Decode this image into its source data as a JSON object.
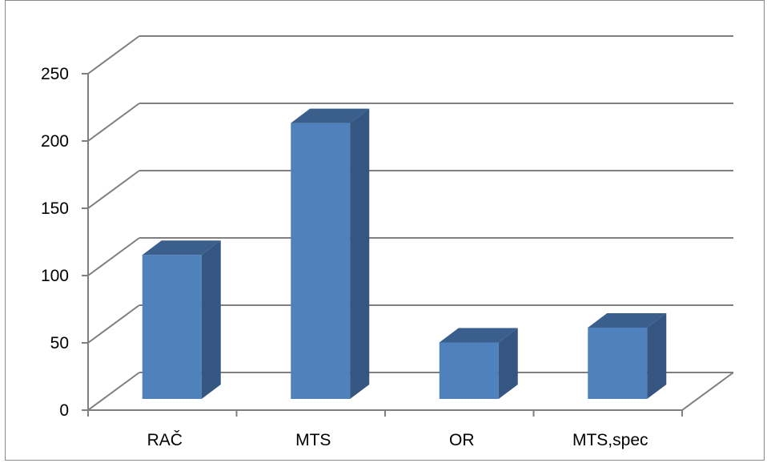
{
  "chart_data": {
    "type": "bar",
    "style": "3d-column",
    "categories": [
      "RAČ",
      "MTS",
      "OR",
      "MTS,spec"
    ],
    "series": [
      {
        "values": [
          107,
          205,
          42,
          53
        ]
      }
    ],
    "ylim": [
      0,
      250
    ],
    "yticks": [
      "0",
      "50",
      "100",
      "150",
      "200",
      "250"
    ],
    "grid": true,
    "legend": "none",
    "colors": {
      "bar_front": "#4f81bd",
      "bar_side": "#345680",
      "bar_top": "#3a5f8d",
      "grid": "#7f7f7f"
    }
  }
}
